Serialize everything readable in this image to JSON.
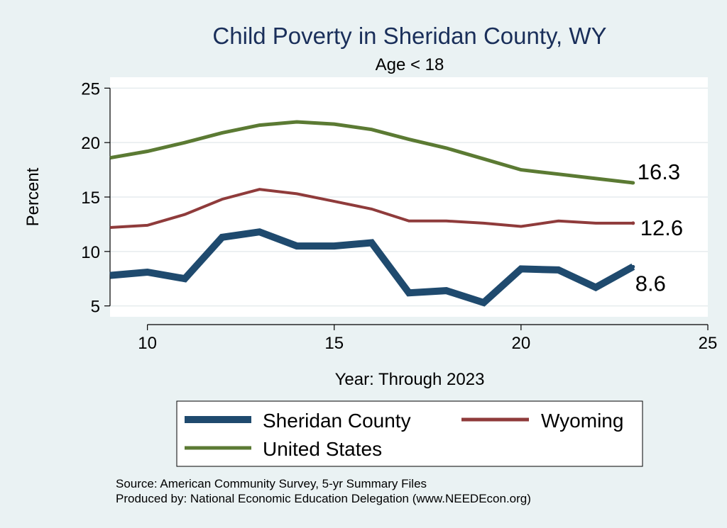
{
  "chart_data": {
    "type": "line",
    "title": "Child Poverty in Sheridan County, WY",
    "subtitle": "Age < 18",
    "xlabel": "Year: Through 2023",
    "ylabel": "Percent",
    "xlim": [
      9,
      25
    ],
    "ylim": [
      4,
      26
    ],
    "xticks": [
      10,
      15,
      20,
      25
    ],
    "yticks": [
      5,
      10,
      15,
      20,
      25
    ],
    "x": [
      9,
      10,
      11,
      12,
      13,
      14,
      15,
      16,
      17,
      18,
      19,
      20,
      21,
      22,
      23
    ],
    "series": [
      {
        "name": "United States",
        "color": "#5b7a33",
        "values": [
          18.6,
          19.2,
          20.0,
          20.9,
          21.6,
          21.9,
          21.7,
          21.2,
          20.3,
          19.5,
          18.5,
          17.5,
          17.1,
          16.7,
          16.3
        ],
        "end_label": "16.3"
      },
      {
        "name": "Wyoming",
        "color": "#8f3b3b",
        "values": [
          12.2,
          12.4,
          13.4,
          14.8,
          15.7,
          15.3,
          14.6,
          13.9,
          12.8,
          12.8,
          12.6,
          12.3,
          12.8,
          12.6,
          12.6
        ],
        "end_label": "12.6"
      },
      {
        "name": "Sheridan County",
        "color": "#1f4a6e",
        "values": [
          7.8,
          8.1,
          7.5,
          11.3,
          11.8,
          10.5,
          10.5,
          10.8,
          6.2,
          6.4,
          5.3,
          8.4,
          8.3,
          6.7,
          8.6
        ],
        "end_label": "8.6"
      }
    ],
    "legend": {
      "position": "bottom",
      "items": [
        "Sheridan County",
        "Wyoming",
        "United States"
      ]
    },
    "source_lines": [
      "Source: American Community Survey, 5-yr Summary Files",
      "Produced by: National Economic Education Delegation (www.NEEDEcon.org)"
    ]
  }
}
